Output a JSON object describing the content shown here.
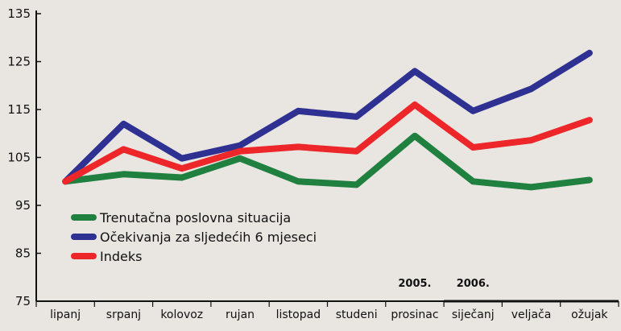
{
  "chart_data": {
    "type": "line",
    "categories": [
      "lipanj",
      "srpanj",
      "kolovoz",
      "rujan",
      "listopad",
      "studeni",
      "prosinac",
      "siječanj",
      "veljača",
      "ožujak"
    ],
    "year_labels": [
      {
        "label": "2005.",
        "category_index": 6
      },
      {
        "label": "2006.",
        "category_index": 7
      }
    ],
    "series": [
      {
        "name": "Trenutačna poslovna situacija",
        "color": "#1f8040",
        "values": [
          100,
          101.5,
          100.8,
          104.8,
          100,
          99.3,
          109.5,
          100,
          98.8,
          100.3
        ]
      },
      {
        "name": "Očekivanja za sljedećih 6 mjeseci",
        "color": "#2e3192",
        "values": [
          100,
          112,
          104.8,
          107.5,
          114.7,
          113.5,
          123,
          114.7,
          119.3,
          126.8
        ]
      },
      {
        "name": "Indeks",
        "color": "#ec2629",
        "values": [
          100,
          106.7,
          102.7,
          106.3,
          107.2,
          106.3,
          116,
          107.1,
          108.6,
          112.8
        ]
      }
    ],
    "yticks": [
      75,
      85,
      95,
      105,
      115,
      125,
      135
    ],
    "ylim": [
      75,
      135
    ],
    "grid": false,
    "legend_position": "bottom-left",
    "title": "",
    "xlabel": "",
    "ylabel": ""
  }
}
